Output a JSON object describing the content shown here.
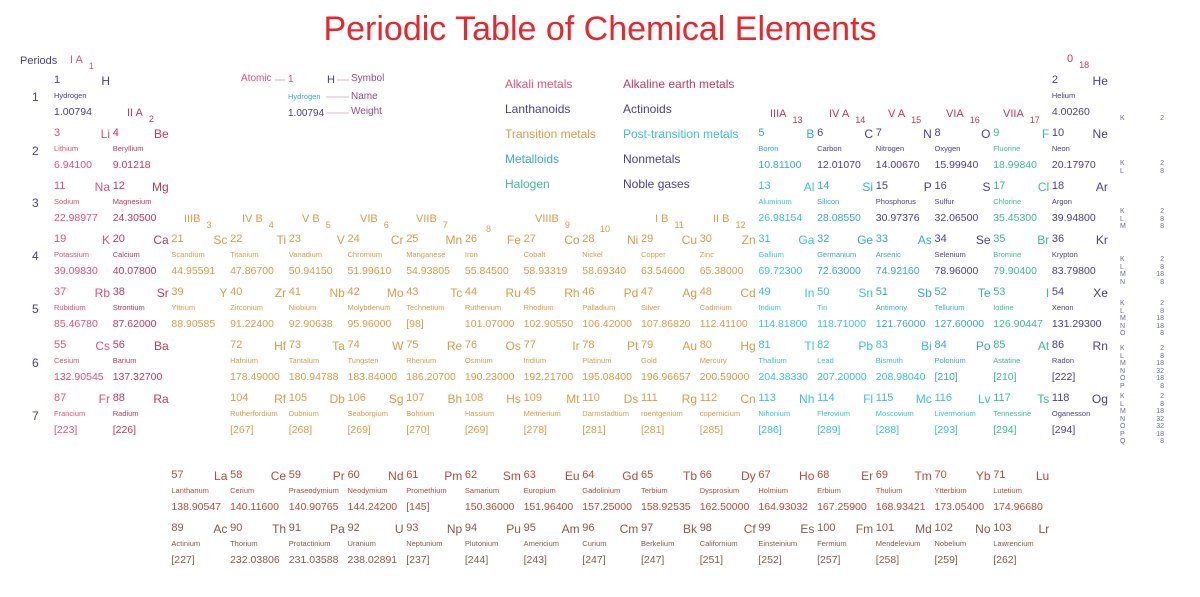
{
  "title": "Periodic Table of Chemical Elements",
  "periods_label": "Periods",
  "period_numbers": [
    "1",
    "2",
    "3",
    "4",
    "5",
    "6",
    "7"
  ],
  "key": {
    "atomic_label": "Atomic",
    "symbol_label": "Symbol",
    "name_label": "Name",
    "weight_label": "Weight",
    "example": {
      "n": "1",
      "s": "H",
      "name": "Hydrogen",
      "w": "1.00794"
    }
  },
  "colors": {
    "title": "#e8262d",
    "alkali": "#e05276",
    "alkaline": "#c03a5a",
    "lanthanoid": "#b8493b",
    "actinoid": "#8a5a4a",
    "transition": "#de9a48",
    "post_transition": "#3cc0e3",
    "metalloid": "#3aa7d7",
    "nonmetal": "#4b3f8f",
    "halogen": "#3dbb95",
    "noble": "#4b3f8f"
  },
  "legend": [
    {
      "label": "Alkali metals",
      "cat": "alkali"
    },
    {
      "label": "Alkaline earth metals",
      "cat": "alkaline"
    },
    {
      "label": "Lanthanoids",
      "cat": "nonmetal"
    },
    {
      "label": "Actinoids",
      "cat": "nonmetal"
    },
    {
      "label": "Transition metals",
      "cat": "transition"
    },
    {
      "label": "Post-transition metals",
      "cat": "post_transition"
    },
    {
      "label": "Metalloids",
      "cat": "metalloid"
    },
    {
      "label": "Nonmetals",
      "cat": "nonmetal"
    },
    {
      "label": "Halogen",
      "cat": "halogen"
    },
    {
      "label": "Noble gases",
      "cat": "noble"
    }
  ],
  "groups": [
    {
      "label": "I A",
      "num": "1"
    },
    {
      "label": "II A",
      "num": "2"
    },
    {
      "label": "IIIB",
      "num": "3"
    },
    {
      "label": "IV B",
      "num": "4"
    },
    {
      "label": "V B",
      "num": "5"
    },
    {
      "label": "VIB",
      "num": "6"
    },
    {
      "label": "VIIB",
      "num": "7"
    },
    {
      "label": "",
      "num": "8"
    },
    {
      "label": "VIIIB",
      "num": "9"
    },
    {
      "label": "",
      "num": "10"
    },
    {
      "label": "I B",
      "num": "11"
    },
    {
      "label": "II B",
      "num": "12"
    },
    {
      "label": "IIIA",
      "num": "13"
    },
    {
      "label": "IV A",
      "num": "14"
    },
    {
      "label": "V A",
      "num": "15"
    },
    {
      "label": "VIA",
      "num": "16"
    },
    {
      "label": "VIIA",
      "num": "17"
    },
    {
      "label": "0",
      "num": "18"
    }
  ],
  "shell_labels": [
    "K",
    "K L",
    "K L M",
    "K L M N",
    "K L M N O",
    "K L M N O P",
    "K L M N O P Q"
  ],
  "shell_counts": [
    "2",
    "2 8",
    "2 8 8",
    "2 8 18 8",
    "2 8 18 18 8",
    "2 8 18 32 18 8",
    "2 8 18 32 32 18 8"
  ],
  "elements": [
    {
      "n": "1",
      "s": "H",
      "name": "Hydrogen",
      "w": "1.00794",
      "p": 1,
      "g": 1,
      "c": "nonmetal"
    },
    {
      "n": "2",
      "s": "He",
      "name": "Helium",
      "w": "4.00260",
      "p": 1,
      "g": 18,
      "c": "noble"
    },
    {
      "n": "3",
      "s": "Li",
      "name": "Lithium",
      "w": "6.94100",
      "p": 2,
      "g": 1,
      "c": "alkali"
    },
    {
      "n": "4",
      "s": "Be",
      "name": "Beryllium",
      "w": "9.01218",
      "p": 2,
      "g": 2,
      "c": "alkaline"
    },
    {
      "n": "5",
      "s": "B",
      "name": "Boron",
      "w": "10.81100",
      "p": 2,
      "g": 13,
      "c": "metalloid"
    },
    {
      "n": "6",
      "s": "C",
      "name": "Carbon",
      "w": "12.01070",
      "p": 2,
      "g": 14,
      "c": "nonmetal"
    },
    {
      "n": "7",
      "s": "N",
      "name": "Nitrogen",
      "w": "14.00670",
      "p": 2,
      "g": 15,
      "c": "nonmetal"
    },
    {
      "n": "8",
      "s": "O",
      "name": "Oxygen",
      "w": "15.99940",
      "p": 2,
      "g": 16,
      "c": "nonmetal"
    },
    {
      "n": "9",
      "s": "F",
      "name": "Fluorine",
      "w": "18.99840",
      "p": 2,
      "g": 17,
      "c": "halogen"
    },
    {
      "n": "10",
      "s": "Ne",
      "name": "Neon",
      "w": "20.17970",
      "p": 2,
      "g": 18,
      "c": "noble"
    },
    {
      "n": "11",
      "s": "Na",
      "name": "Sodium",
      "w": "22.98977",
      "p": 3,
      "g": 1,
      "c": "alkali"
    },
    {
      "n": "12",
      "s": "Mg",
      "name": "Magnesium",
      "w": "24.30500",
      "p": 3,
      "g": 2,
      "c": "alkaline"
    },
    {
      "n": "13",
      "s": "Al",
      "name": "Aluminum",
      "w": "26.98154",
      "p": 3,
      "g": 13,
      "c": "post_transition"
    },
    {
      "n": "14",
      "s": "Si",
      "name": "Silicon",
      "w": "28.08550",
      "p": 3,
      "g": 14,
      "c": "metalloid"
    },
    {
      "n": "15",
      "s": "P",
      "name": "Phosphorus",
      "w": "30.97376",
      "p": 3,
      "g": 15,
      "c": "nonmetal"
    },
    {
      "n": "16",
      "s": "S",
      "name": "Sulfur",
      "w": "32.06500",
      "p": 3,
      "g": 16,
      "c": "nonmetal"
    },
    {
      "n": "17",
      "s": "Cl",
      "name": "Chlorine",
      "w": "35.45300",
      "p": 3,
      "g": 17,
      "c": "halogen"
    },
    {
      "n": "18",
      "s": "Ar",
      "name": "Argon",
      "w": "39.94800",
      "p": 3,
      "g": 18,
      "c": "noble"
    },
    {
      "n": "19",
      "s": "K",
      "name": "Potassium",
      "w": "39.09830",
      "p": 4,
      "g": 1,
      "c": "alkali"
    },
    {
      "n": "20",
      "s": "Ca",
      "name": "Calcium",
      "w": "40.07800",
      "p": 4,
      "g": 2,
      "c": "alkaline"
    },
    {
      "n": "21",
      "s": "Sc",
      "name": "Scandium",
      "w": "44.95591",
      "p": 4,
      "g": 3,
      "c": "transition"
    },
    {
      "n": "22",
      "s": "Ti",
      "name": "Titanium",
      "w": "47.86700",
      "p": 4,
      "g": 4,
      "c": "transition"
    },
    {
      "n": "23",
      "s": "V",
      "name": "Vanadium",
      "w": "50.94150",
      "p": 4,
      "g": 5,
      "c": "transition"
    },
    {
      "n": "24",
      "s": "Cr",
      "name": "Chromium",
      "w": "51.99610",
      "p": 4,
      "g": 6,
      "c": "transition"
    },
    {
      "n": "25",
      "s": "Mn",
      "name": "Manganese",
      "w": "54.93805",
      "p": 4,
      "g": 7,
      "c": "transition"
    },
    {
      "n": "26",
      "s": "Fe",
      "name": "Iron",
      "w": "55.84500",
      "p": 4,
      "g": 8,
      "c": "transition"
    },
    {
      "n": "27",
      "s": "Co",
      "name": "Cobalt",
      "w": "58.93319",
      "p": 4,
      "g": 9,
      "c": "transition"
    },
    {
      "n": "28",
      "s": "Ni",
      "name": "Nickel",
      "w": "58.69340",
      "p": 4,
      "g": 10,
      "c": "transition"
    },
    {
      "n": "29",
      "s": "Cu",
      "name": "Copper",
      "w": "63.54600",
      "p": 4,
      "g": 11,
      "c": "transition"
    },
    {
      "n": "30",
      "s": "Zn",
      "name": "Zinc",
      "w": "65.38000",
      "p": 4,
      "g": 12,
      "c": "transition"
    },
    {
      "n": "31",
      "s": "Ga",
      "name": "Gallium",
      "w": "69.72300",
      "p": 4,
      "g": 13,
      "c": "post_transition"
    },
    {
      "n": "32",
      "s": "Ge",
      "name": "Germanium",
      "w": "72.63000",
      "p": 4,
      "g": 14,
      "c": "metalloid"
    },
    {
      "n": "33",
      "s": "As",
      "name": "Arsenic",
      "w": "74.92160",
      "p": 4,
      "g": 15,
      "c": "metalloid"
    },
    {
      "n": "34",
      "s": "Se",
      "name": "Selenium",
      "w": "78.96000",
      "p": 4,
      "g": 16,
      "c": "nonmetal"
    },
    {
      "n": "35",
      "s": "Br",
      "name": "Bromine",
      "w": "79.90400",
      "p": 4,
      "g": 17,
      "c": "halogen"
    },
    {
      "n": "36",
      "s": "Kr",
      "name": "Krypton",
      "w": "83.79800",
      "p": 4,
      "g": 18,
      "c": "noble"
    },
    {
      "n": "37",
      "s": "Rb",
      "name": "Rubidium",
      "w": "85.46780",
      "p": 5,
      "g": 1,
      "c": "alkali"
    },
    {
      "n": "38",
      "s": "Sr",
      "name": "Strontium",
      "w": "87.62000",
      "p": 5,
      "g": 2,
      "c": "alkaline"
    },
    {
      "n": "39",
      "s": "Y",
      "name": "Yttrium",
      "w": "88.90585",
      "p": 5,
      "g": 3,
      "c": "transition"
    },
    {
      "n": "40",
      "s": "Zr",
      "name": "Zirconium",
      "w": "91.22400",
      "p": 5,
      "g": 4,
      "c": "transition"
    },
    {
      "n": "41",
      "s": "Nb",
      "name": "Niobium",
      "w": "92.90638",
      "p": 5,
      "g": 5,
      "c": "transition"
    },
    {
      "n": "42",
      "s": "Mo",
      "name": "Molybdenum",
      "w": "95.96000",
      "p": 5,
      "g": 6,
      "c": "transition"
    },
    {
      "n": "43",
      "s": "Tc",
      "name": "Technetium",
      "w": "[98]",
      "p": 5,
      "g": 7,
      "c": "transition"
    },
    {
      "n": "44",
      "s": "Ru",
      "name": "Ruthenium",
      "w": "101.07000",
      "p": 5,
      "g": 8,
      "c": "transition"
    },
    {
      "n": "45",
      "s": "Rh",
      "name": "Rhodium",
      "w": "102.90550",
      "p": 5,
      "g": 9,
      "c": "transition"
    },
    {
      "n": "46",
      "s": "Pd",
      "name": "Palladium",
      "w": "106.42000",
      "p": 5,
      "g": 10,
      "c": "transition"
    },
    {
      "n": "47",
      "s": "Ag",
      "name": "Silver",
      "w": "107.86820",
      "p": 5,
      "g": 11,
      "c": "transition"
    },
    {
      "n": "48",
      "s": "Cd",
      "name": "Cadmium",
      "w": "112.41100",
      "p": 5,
      "g": 12,
      "c": "transition"
    },
    {
      "n": "49",
      "s": "In",
      "name": "Indium",
      "w": "114.81800",
      "p": 5,
      "g": 13,
      "c": "post_transition"
    },
    {
      "n": "50",
      "s": "Sn",
      "name": "Tin",
      "w": "118.71000",
      "p": 5,
      "g": 14,
      "c": "post_transition"
    },
    {
      "n": "51",
      "s": "Sb",
      "name": "Antimony",
      "w": "121.76000",
      "p": 5,
      "g": 15,
      "c": "metalloid"
    },
    {
      "n": "52",
      "s": "Te",
      "name": "Tellurium",
      "w": "127.60000",
      "p": 5,
      "g": 16,
      "c": "metalloid"
    },
    {
      "n": "53",
      "s": "I",
      "name": "Iodine",
      "w": "126.90447",
      "p": 5,
      "g": 17,
      "c": "halogen"
    },
    {
      "n": "54",
      "s": "Xe",
      "name": "Xenon",
      "w": "131.29300",
      "p": 5,
      "g": 18,
      "c": "noble"
    },
    {
      "n": "55",
      "s": "Cs",
      "name": "Cesium",
      "w": "132.90545",
      "p": 6,
      "g": 1,
      "c": "alkali"
    },
    {
      "n": "56",
      "s": "Ba",
      "name": "Barium",
      "w": "137.32700",
      "p": 6,
      "g": 2,
      "c": "alkaline"
    },
    {
      "n": "72",
      "s": "Hf",
      "name": "Hafnium",
      "w": "178.49000",
      "p": 6,
      "g": 4,
      "c": "transition"
    },
    {
      "n": "73",
      "s": "Ta",
      "name": "Tantalum",
      "w": "180.94788",
      "p": 6,
      "g": 5,
      "c": "transition"
    },
    {
      "n": "74",
      "s": "W",
      "name": "Tungsten",
      "w": "183.84000",
      "p": 6,
      "g": 6,
      "c": "transition"
    },
    {
      "n": "75",
      "s": "Re",
      "name": "Rhenium",
      "w": "186.20700",
      "p": 6,
      "g": 7,
      "c": "transition"
    },
    {
      "n": "76",
      "s": "Os",
      "name": "Osmium",
      "w": "190.23000",
      "p": 6,
      "g": 8,
      "c": "transition"
    },
    {
      "n": "77",
      "s": "Ir",
      "name": "Iridium",
      "w": "192.21700",
      "p": 6,
      "g": 9,
      "c": "transition"
    },
    {
      "n": "78",
      "s": "Pt",
      "name": "Platinum",
      "w": "195.08400",
      "p": 6,
      "g": 10,
      "c": "transition"
    },
    {
      "n": "79",
      "s": "Au",
      "name": "Gold",
      "w": "196.96657",
      "p": 6,
      "g": 11,
      "c": "transition"
    },
    {
      "n": "80",
      "s": "Hg",
      "name": "Mercury",
      "w": "200.59000",
      "p": 6,
      "g": 12,
      "c": "transition"
    },
    {
      "n": "81",
      "s": "Tl",
      "name": "Thallium",
      "w": "204.38330",
      "p": 6,
      "g": 13,
      "c": "post_transition"
    },
    {
      "n": "82",
      "s": "Pb",
      "name": "Lead",
      "w": "207.20000",
      "p": 6,
      "g": 14,
      "c": "post_transition"
    },
    {
      "n": "83",
      "s": "Bi",
      "name": "Bismuth",
      "w": "208.98040",
      "p": 6,
      "g": 15,
      "c": "post_transition"
    },
    {
      "n": "84",
      "s": "Po",
      "name": "Polonium",
      "w": "[210]",
      "p": 6,
      "g": 16,
      "c": "metalloid"
    },
    {
      "n": "85",
      "s": "At",
      "name": "Astatine",
      "w": "[210]",
      "p": 6,
      "g": 17,
      "c": "halogen"
    },
    {
      "n": "86",
      "s": "Rn",
      "name": "Radon",
      "w": "[222]",
      "p": 6,
      "g": 18,
      "c": "noble"
    },
    {
      "n": "87",
      "s": "Fr",
      "name": "Francium",
      "w": "[223]",
      "p": 7,
      "g": 1,
      "c": "alkali"
    },
    {
      "n": "88",
      "s": "Ra",
      "name": "Radium",
      "w": "[226]",
      "p": 7,
      "g": 2,
      "c": "alkaline"
    },
    {
      "n": "104",
      "s": "Rf",
      "name": "Rutherfordium",
      "w": "[267]",
      "p": 7,
      "g": 4,
      "c": "transition"
    },
    {
      "n": "105",
      "s": "Db",
      "name": "Dubnium",
      "w": "[268]",
      "p": 7,
      "g": 5,
      "c": "transition"
    },
    {
      "n": "106",
      "s": "Sg",
      "name": "Seaborgium",
      "w": "[269]",
      "p": 7,
      "g": 6,
      "c": "transition"
    },
    {
      "n": "107",
      "s": "Bh",
      "name": "Bohrium",
      "w": "[270]",
      "p": 7,
      "g": 7,
      "c": "transition"
    },
    {
      "n": "108",
      "s": "Hs",
      "name": "Hassium",
      "w": "[269]",
      "p": 7,
      "g": 8,
      "c": "transition"
    },
    {
      "n": "109",
      "s": "Mt",
      "name": "Meitnerium",
      "w": "[278]",
      "p": 7,
      "g": 9,
      "c": "transition"
    },
    {
      "n": "110",
      "s": "Ds",
      "name": "Darmstadtium",
      "w": "[281]",
      "p": 7,
      "g": 10,
      "c": "transition"
    },
    {
      "n": "111",
      "s": "Rg",
      "name": "roentgenium",
      "w": "[281]",
      "p": 7,
      "g": 11,
      "c": "transition"
    },
    {
      "n": "112",
      "s": "Cn",
      "name": "copernicium",
      "w": "[285]",
      "p": 7,
      "g": 12,
      "c": "transition"
    },
    {
      "n": "113",
      "s": "Nh",
      "name": "Nihonium",
      "w": "[286]",
      "p": 7,
      "g": 13,
      "c": "post_transition"
    },
    {
      "n": "114",
      "s": "Fl",
      "name": "Flerovium",
      "w": "[289]",
      "p": 7,
      "g": 14,
      "c": "post_transition"
    },
    {
      "n": "115",
      "s": "Mc",
      "name": "Moscovium",
      "w": "[288]",
      "p": 7,
      "g": 15,
      "c": "post_transition"
    },
    {
      "n": "116",
      "s": "Lv",
      "name": "Livermorium",
      "w": "[293]",
      "p": 7,
      "g": 16,
      "c": "post_transition"
    },
    {
      "n": "117",
      "s": "Ts",
      "name": "Tennessine",
      "w": "[294]",
      "p": 7,
      "g": 17,
      "c": "halogen"
    },
    {
      "n": "118",
      "s": "Og",
      "name": "Oganesson",
      "w": "[294]",
      "p": 7,
      "g": 18,
      "c": "noble"
    }
  ],
  "lanthanoids": [
    {
      "n": "57",
      "s": "La",
      "name": "Lanthanum",
      "w": "138.90547"
    },
    {
      "n": "58",
      "s": "Ce",
      "name": "Cerium",
      "w": "140.11600"
    },
    {
      "n": "59",
      "s": "Pr",
      "name": "Praseodymium",
      "w": "140.90765"
    },
    {
      "n": "60",
      "s": "Nd",
      "name": "Neodymium",
      "w": "144.24200"
    },
    {
      "n": "61",
      "s": "Pm",
      "name": "Promethium",
      "w": "[145]"
    },
    {
      "n": "62",
      "s": "Sm",
      "name": "Samarium",
      "w": "150.36000"
    },
    {
      "n": "63",
      "s": "Eu",
      "name": "Europium",
      "w": "151.96400"
    },
    {
      "n": "64",
      "s": "Gd",
      "name": "Gadolinium",
      "w": "157.25000"
    },
    {
      "n": "65",
      "s": "Tb",
      "name": "Terbium",
      "w": "158.92535"
    },
    {
      "n": "66",
      "s": "Dy",
      "name": "Dysprosium",
      "w": "162.50000"
    },
    {
      "n": "67",
      "s": "Ho",
      "name": "Holmium",
      "w": "164.93032"
    },
    {
      "n": "68",
      "s": "Er",
      "name": "Erbium",
      "w": "167.25900"
    },
    {
      "n": "69",
      "s": "Tm",
      "name": "Thulium",
      "w": "168.93421"
    },
    {
      "n": "70",
      "s": "Yb",
      "name": "Ytterbium",
      "w": "173.05400"
    },
    {
      "n": "71",
      "s": "Lu",
      "name": "Lutetium",
      "w": "174.96680"
    }
  ],
  "actinoids": [
    {
      "n": "89",
      "s": "Ac",
      "name": "Actinium",
      "w": "[227]"
    },
    {
      "n": "90",
      "s": "Th",
      "name": "Thorium",
      "w": "232.03806"
    },
    {
      "n": "91",
      "s": "Pa",
      "name": "Protactinium",
      "w": "231.03588"
    },
    {
      "n": "92",
      "s": "U",
      "name": "Uranium",
      "w": "238.02891"
    },
    {
      "n": "93",
      "s": "Np",
      "name": "Neptunium",
      "w": "[237]"
    },
    {
      "n": "94",
      "s": "Pu",
      "name": "Plutonium",
      "w": "[244]"
    },
    {
      "n": "95",
      "s": "Am",
      "name": "Americium",
      "w": "[243]"
    },
    {
      "n": "96",
      "s": "Cm",
      "name": "Curium",
      "w": "[247]"
    },
    {
      "n": "97",
      "s": "Bk",
      "name": "Berkelium",
      "w": "[247]"
    },
    {
      "n": "98",
      "s": "Cf",
      "name": "Californium",
      "w": "[251]"
    },
    {
      "n": "99",
      "s": "Es",
      "name": "Einsteinium",
      "w": "[252]"
    },
    {
      "n": "100",
      "s": "Fm",
      "name": "Fermium",
      "w": "[257]"
    },
    {
      "n": "101",
      "s": "Md",
      "name": "Mendelevium",
      "w": "[258]"
    },
    {
      "n": "102",
      "s": "No",
      "name": "Nobelium",
      "w": "[259]"
    },
    {
      "n": "103",
      "s": "Lr",
      "name": "Lawrencium",
      "w": "[262]"
    }
  ]
}
